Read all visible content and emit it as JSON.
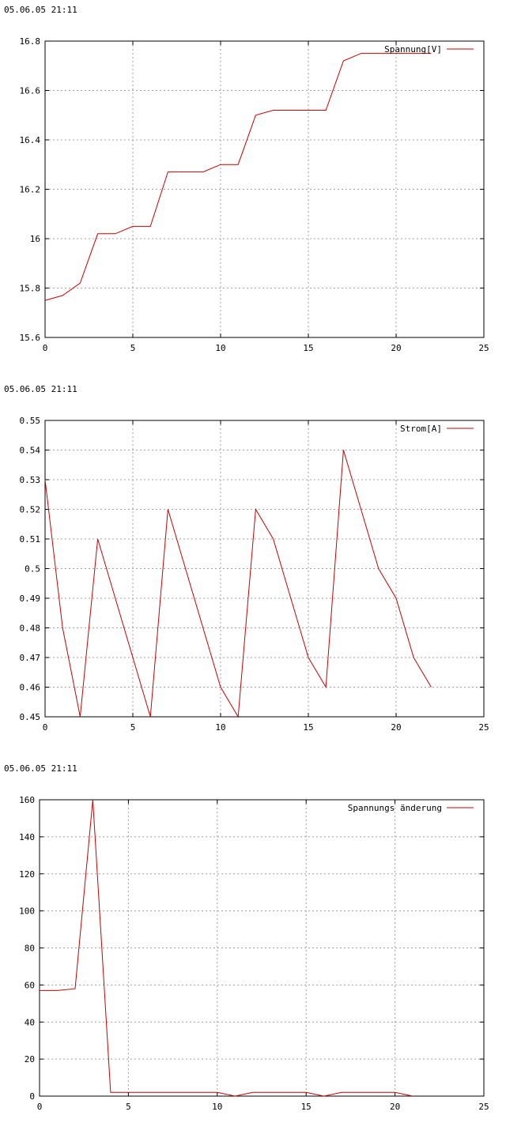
{
  "chart_data": [
    {
      "type": "line",
      "timestamp": "05.06.05 21:11",
      "title": "",
      "xlabel": "",
      "ylabel": "",
      "xlim": [
        0,
        25
      ],
      "ylim": [
        15.6,
        16.8
      ],
      "xticks": [
        0,
        5,
        10,
        15,
        20,
        25
      ],
      "yticks": [
        15.6,
        15.8,
        16,
        16.2,
        16.4,
        16.6,
        16.8
      ],
      "xtick_labels": [
        "0",
        "5",
        "10",
        "15",
        "20",
        "25"
      ],
      "ytick_labels": [
        "15.6",
        "15.8",
        "16",
        "16.2",
        "16.4",
        "16.6",
        "16.8"
      ],
      "grid": true,
      "legend": "top-right",
      "series": [
        {
          "name": "Spannung[V]",
          "color": "#cc0000",
          "x": [
            0,
            1,
            2,
            3,
            4,
            5,
            6,
            7,
            8,
            9,
            10,
            11,
            12,
            13,
            14,
            15,
            16,
            17,
            18,
            19,
            20,
            21,
            22
          ],
          "y": [
            15.75,
            15.77,
            15.82,
            16.02,
            16.02,
            16.05,
            16.05,
            16.27,
            16.27,
            16.27,
            16.3,
            16.3,
            16.5,
            16.52,
            16.52,
            16.52,
            16.52,
            16.72,
            16.75,
            16.75,
            16.75,
            16.75,
            16.75
          ]
        }
      ]
    },
    {
      "type": "line",
      "timestamp": "05.06.05 21:11",
      "title": "",
      "xlabel": "",
      "ylabel": "",
      "xlim": [
        0,
        25
      ],
      "ylim": [
        0.45,
        0.55
      ],
      "xticks": [
        0,
        5,
        10,
        15,
        20,
        25
      ],
      "yticks": [
        0.45,
        0.46,
        0.47,
        0.48,
        0.49,
        0.5,
        0.51,
        0.52,
        0.53,
        0.54,
        0.55
      ],
      "xtick_labels": [
        "0",
        "5",
        "10",
        "15",
        "20",
        "25"
      ],
      "ytick_labels": [
        "0.45",
        "0.46",
        "0.47",
        "0.48",
        "0.49",
        "0.5",
        "0.51",
        "0.52",
        "0.53",
        "0.54",
        "0.55"
      ],
      "grid": true,
      "legend": "top-right",
      "series": [
        {
          "name": "Strom[A]",
          "color": "#cc0000",
          "x": [
            0,
            1,
            2,
            3,
            4,
            5,
            6,
            7,
            8,
            9,
            10,
            11,
            12,
            13,
            14,
            15,
            16,
            17,
            18,
            19,
            20,
            21,
            22
          ],
          "y": [
            0.53,
            0.48,
            0.45,
            0.51,
            0.49,
            0.47,
            0.45,
            0.52,
            0.5,
            0.48,
            0.46,
            0.45,
            0.52,
            0.51,
            0.49,
            0.47,
            0.46,
            0.54,
            0.52,
            0.5,
            0.49,
            0.47,
            0.46
          ]
        }
      ]
    },
    {
      "type": "line",
      "timestamp": "05.06.05 21:11",
      "title": "",
      "xlabel": "",
      "ylabel": "",
      "xlim": [
        0,
        25
      ],
      "ylim": [
        0,
        160
      ],
      "xticks": [
        0,
        5,
        10,
        15,
        20,
        25
      ],
      "yticks": [
        0,
        20,
        40,
        60,
        80,
        100,
        120,
        140,
        160
      ],
      "xtick_labels": [
        "0",
        "5",
        "10",
        "15",
        "20",
        "25"
      ],
      "ytick_labels": [
        "0",
        "20",
        "40",
        "60",
        "80",
        "100",
        "120",
        "140",
        "160"
      ],
      "grid": true,
      "legend": "top-right",
      "series": [
        {
          "name": "Spannungs änderung",
          "color": "#cc0000",
          "x": [
            0,
            1,
            2,
            3,
            4,
            5,
            6,
            7,
            8,
            9,
            10,
            11,
            12,
            13,
            14,
            15,
            16,
            17,
            18,
            19,
            20,
            21
          ],
          "y": [
            57,
            57,
            58,
            160,
            2,
            2,
            2,
            2,
            2,
            2,
            2,
            0,
            2,
            2,
            2,
            2,
            0,
            2,
            2,
            2,
            2,
            0
          ]
        }
      ]
    }
  ]
}
